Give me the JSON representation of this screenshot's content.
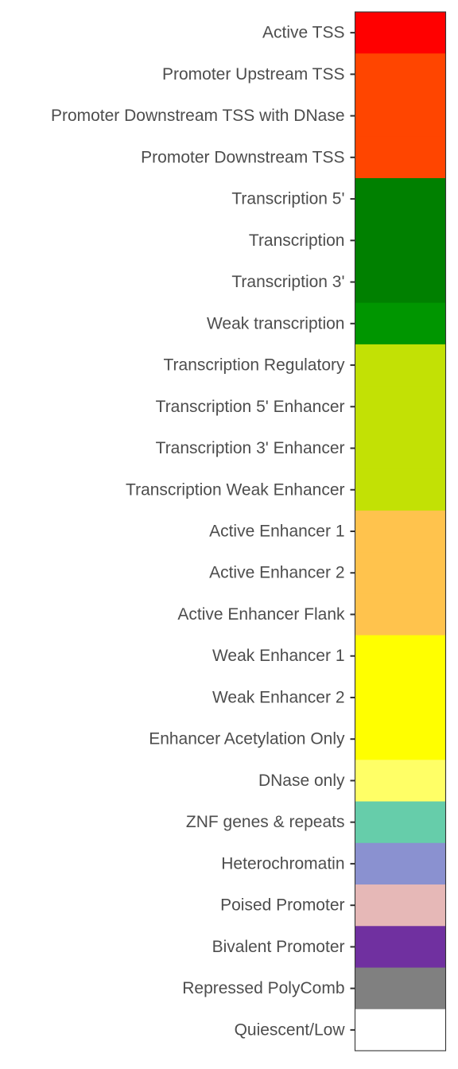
{
  "chart_data": {
    "type": "heatmap",
    "title": "",
    "xlabel": "",
    "ylabel": "",
    "grid": false,
    "legend": "none",
    "categories": [
      "Active TSS",
      "Promoter Upstream TSS",
      "Promoter Downstream TSS with DNase",
      "Promoter Downstream TSS",
      "Transcription 5'",
      "Transcription",
      "Transcription 3'",
      "Weak transcription",
      "Transcription Regulatory",
      "Transcription 5' Enhancer",
      "Transcription 3' Enhancer",
      "Transcription Weak Enhancer",
      "Active Enhancer 1",
      "Active Enhancer 2",
      "Active Enhancer Flank",
      "Weak Enhancer 1",
      "Weak Enhancer 2",
      "Enhancer Acetylation Only",
      "DNase only",
      "ZNF genes & repeats",
      "Heterochromatin",
      "Poised Promoter",
      "Bivalent Promoter",
      "Repressed PolyComb",
      "Quiescent/Low"
    ],
    "colors": [
      "#FF0000",
      "#FF4500",
      "#FF4500",
      "#FF4500",
      "#008000",
      "#008000",
      "#008000",
      "#009600",
      "#C2E105",
      "#C2E105",
      "#C2E105",
      "#C2E105",
      "#FFC34D",
      "#FFC34D",
      "#FFC34D",
      "#FFFF00",
      "#FFFF00",
      "#FFFF00",
      "#FFFF66",
      "#66CDAA",
      "#8A91D0",
      "#E6B8B7",
      "#7030A0",
      "#808080",
      "#FFFFFF"
    ]
  }
}
